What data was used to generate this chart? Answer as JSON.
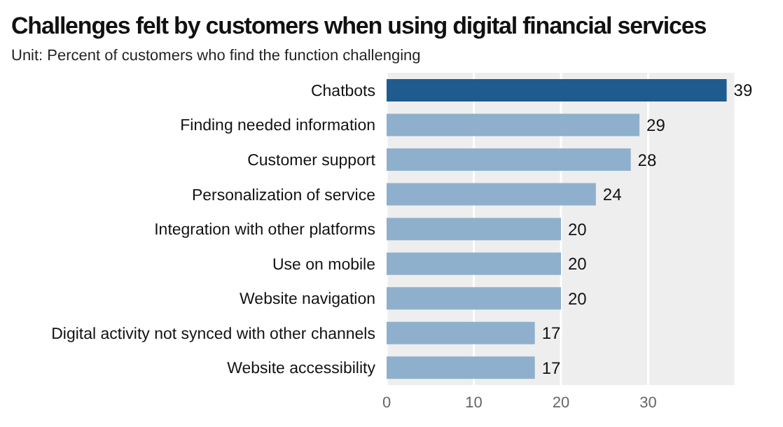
{
  "chart_data": {
    "type": "bar",
    "orientation": "horizontal",
    "title": "Challenges felt by customers when using digital financial services",
    "subtitle": "Unit: Percent of customers who find the function challenging",
    "categories": [
      "Chatbots",
      "Finding needed information",
      "Customer support",
      "Personalization of service",
      "Integration with other platforms",
      "Use on mobile",
      "Website navigation",
      "Digital activity not synced with other channels",
      "Website accessibility"
    ],
    "values": [
      39,
      29,
      28,
      24,
      20,
      20,
      20,
      17,
      17
    ],
    "colors": [
      "#1f5b8e",
      "#8fb0cc",
      "#8fb0cc",
      "#8fb0cc",
      "#8fb0cc",
      "#8fb0cc",
      "#8fb0cc",
      "#8fb0cc",
      "#8fb0cc"
    ],
    "xlim": [
      0,
      40
    ],
    "xticks": [
      0,
      10,
      20,
      30
    ],
    "grid": "x",
    "data_labels": true
  }
}
